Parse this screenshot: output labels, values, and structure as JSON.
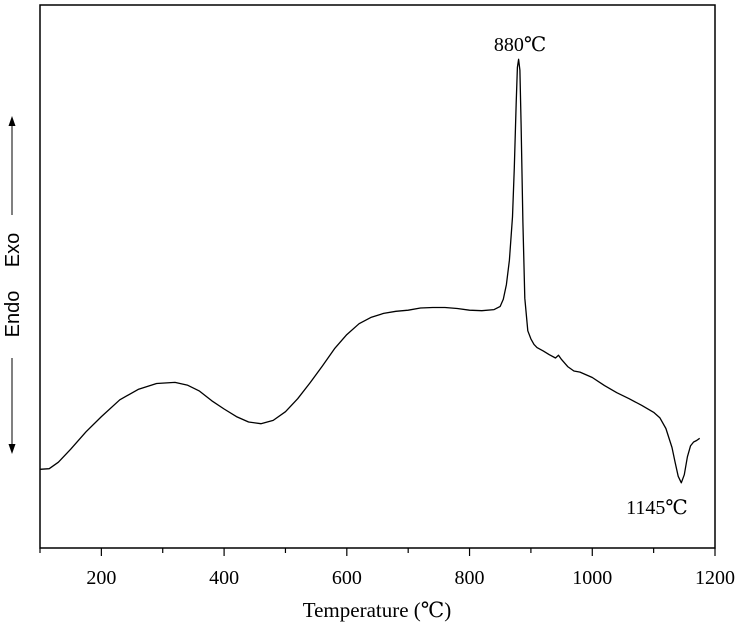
{
  "chart_data": {
    "type": "line",
    "title": "",
    "xlabel": "Temperature (℃)",
    "ylabel_endo": "Endo",
    "ylabel_exo": "Exo",
    "xlim": [
      100,
      1200
    ],
    "xticks": [
      "200",
      "400",
      "600",
      "800",
      "1000",
      "1200"
    ],
    "ylim": [
      0,
      100
    ],
    "grid": false,
    "annotations": [
      {
        "text": "880℃",
        "x": 880,
        "y": 92
      },
      {
        "text": "1145℃",
        "x": 1145,
        "y": 11
      }
    ],
    "series": [
      {
        "x": [
          100,
          115,
          130,
          150,
          175,
          200,
          230,
          260,
          290,
          320,
          340,
          360,
          380,
          400,
          420,
          440,
          460,
          480,
          500,
          520,
          540,
          560,
          580,
          600,
          620,
          640,
          660,
          680,
          700,
          720,
          740,
          760,
          780,
          800,
          820,
          840,
          850,
          855,
          860,
          865,
          870,
          873,
          876,
          878,
          880,
          882,
          884,
          887,
          890,
          895,
          900,
          905,
          910,
          920,
          930,
          940,
          945,
          950,
          960,
          970,
          980,
          1000,
          1020,
          1040,
          1060,
          1080,
          1100,
          1110,
          1120,
          1130,
          1135,
          1140,
          1145,
          1150,
          1155,
          1160,
          1165,
          1170,
          1175
        ],
        "y": [
          14.5,
          14.6,
          15.8,
          18.2,
          21.4,
          24.2,
          27.3,
          29.2,
          30.3,
          30.5,
          30.0,
          28.9,
          27.1,
          25.6,
          24.2,
          23.2,
          22.9,
          23.5,
          25.1,
          27.5,
          30.4,
          33.5,
          36.7,
          39.3,
          41.3,
          42.5,
          43.2,
          43.6,
          43.8,
          44.2,
          44.3,
          44.3,
          44.1,
          43.8,
          43.7,
          43.9,
          44.5,
          45.8,
          48.5,
          53.0,
          61.0,
          70.0,
          82.0,
          88.5,
          90.0,
          88.0,
          78.0,
          60.0,
          46.0,
          40.0,
          38.5,
          37.5,
          36.9,
          36.3,
          35.6,
          35.0,
          35.5,
          34.7,
          33.4,
          32.6,
          32.4,
          31.4,
          29.9,
          28.6,
          27.5,
          26.3,
          25.0,
          24.0,
          22.0,
          18.5,
          15.8,
          13.2,
          12.0,
          13.5,
          16.8,
          18.8,
          19.5,
          19.8,
          20.2
        ]
      }
    ]
  }
}
